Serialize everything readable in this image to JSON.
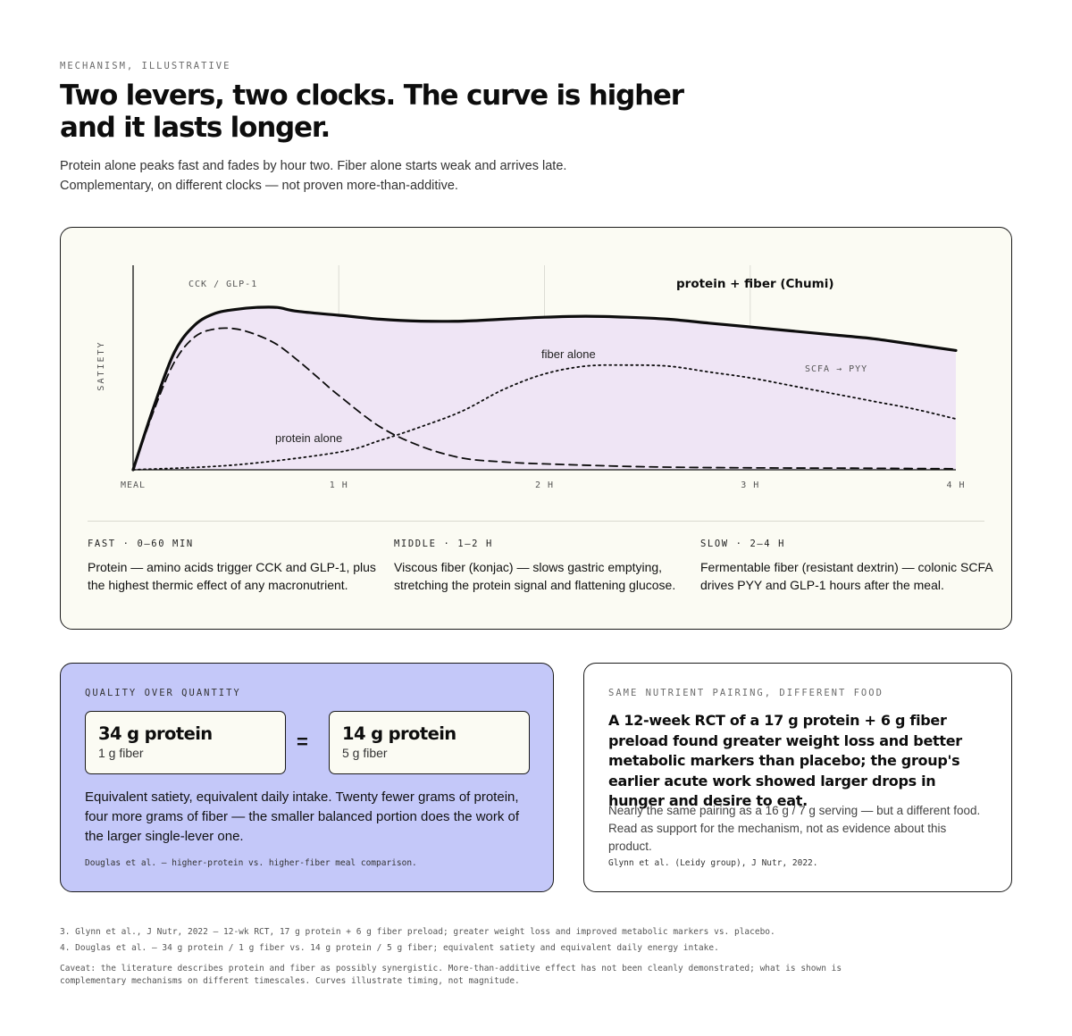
{
  "header": {
    "eyebrow": "MECHANISM, ILLUSTRATIVE",
    "title": "Two levers, two clocks. The curve is higher and it lasts longer.",
    "subtitle_line1": "Protein alone peaks fast and fades by hour two. Fiber alone starts weak and arrives late.",
    "subtitle_line2": "Complementary, on different clocks — not proven more-than-additive."
  },
  "chart_data": {
    "type": "line",
    "ylabel": "SATIETY",
    "xlabel": "",
    "x_ticks": [
      {
        "x": 0,
        "label": "MEAL"
      },
      {
        "x": 1,
        "label": "1 H"
      },
      {
        "x": 2,
        "label": "2 H"
      },
      {
        "x": 3,
        "label": "3 H"
      },
      {
        "x": 4,
        "label": "4 H"
      }
    ],
    "xlim": [
      0,
      4
    ],
    "ylim": [
      0,
      1
    ],
    "grid": "vertical",
    "series": [
      {
        "name": "protein + fiber (Chumi)",
        "style": "solid-thick",
        "filled": true,
        "x": [
          0,
          0.1,
          0.2,
          0.3,
          0.4,
          0.5,
          0.6,
          0.7,
          0.8,
          1.0,
          1.2,
          1.4,
          1.6,
          1.8,
          2.0,
          2.2,
          2.4,
          2.6,
          2.8,
          3.0,
          3.2,
          3.4,
          3.6,
          3.8,
          4.0
        ],
        "y": [
          0,
          0.32,
          0.6,
          0.74,
          0.8,
          0.82,
          0.83,
          0.83,
          0.81,
          0.79,
          0.77,
          0.76,
          0.76,
          0.77,
          0.78,
          0.785,
          0.78,
          0.77,
          0.75,
          0.73,
          0.71,
          0.69,
          0.67,
          0.64,
          0.61
        ]
      },
      {
        "name": "protein alone",
        "style": "dashed",
        "x": [
          0,
          0.1,
          0.2,
          0.3,
          0.4,
          0.5,
          0.6,
          0.7,
          0.8,
          0.9,
          1.0,
          1.2,
          1.4,
          1.6,
          1.8,
          2.0,
          2.5,
          3.0,
          3.5,
          4.0
        ],
        "y": [
          0,
          0.3,
          0.55,
          0.68,
          0.72,
          0.72,
          0.69,
          0.64,
          0.56,
          0.47,
          0.38,
          0.22,
          0.12,
          0.06,
          0.04,
          0.03,
          0.015,
          0.01,
          0.008,
          0.005
        ]
      },
      {
        "name": "fiber alone",
        "style": "dotted",
        "x": [
          0,
          0.5,
          1.0,
          1.2,
          1.4,
          1.6,
          1.8,
          2.0,
          2.2,
          2.4,
          2.6,
          2.8,
          3.0,
          3.2,
          3.4,
          3.6,
          3.8,
          4.0
        ],
        "y": [
          0,
          0.025,
          0.09,
          0.15,
          0.22,
          0.3,
          0.41,
          0.49,
          0.53,
          0.535,
          0.53,
          0.5,
          0.47,
          0.43,
          0.39,
          0.35,
          0.31,
          0.26
        ]
      }
    ],
    "annotations": {
      "cck": "CCK / GLP-1",
      "scfa": "SCFA → PYY"
    }
  },
  "phases": [
    {
      "label": "FAST · 0–60 MIN",
      "text": "Protein — amino acids trigger CCK and GLP-1, plus the highest thermic effect of any macronutrient."
    },
    {
      "label": "MIDDLE · 1–2 H",
      "text": "Viscous fiber (konjac) — slows gastric emptying, stretching the protein signal and flattening glucose."
    },
    {
      "label": "SLOW · 2–4 H",
      "text": "Fermentable fiber (resistant dextrin) — colonic SCFA drives PYY and GLP-1 hours after the meal."
    }
  ],
  "quality": {
    "eyebrow": "QUALITY OVER QUANTITY",
    "left_main": "34 g protein",
    "left_sub": "1 g fiber",
    "equals": "=",
    "right_main": "14 g protein",
    "right_sub": "5 g fiber",
    "body": "Equivalent satiety, equivalent daily intake. Twenty fewer grams of protein, four more grams of fiber — the smaller balanced portion does the work of the larger single-lever one.",
    "cite": "Douglas et al. — higher-protein vs. higher-fiber meal comparison."
  },
  "rct": {
    "eyebrow": "SAME NUTRIENT PAIRING, DIFFERENT FOOD",
    "headline": "A 12-week RCT of a 17 g protein + 6 g fiber preload found greater weight loss and better metabolic markers than placebo; the group's earlier acute work showed larger drops in hunger and desire to eat.",
    "body": "Nearly the same pairing as a 16 g / 7 g serving — but a different food. Read as support for the mechanism, not as evidence about this product.",
    "cite": "Glynn et al. (Leidy group), J Nutr, 2022."
  },
  "footnotes": {
    "fn3": "3. Glynn et al., J Nutr, 2022 — 12-wk RCT, 17 g protein + 6 g fiber preload; greater weight loss and improved metabolic markers vs. placebo.",
    "fn4": "4. Douglas et al. — 34 g protein / 1 g fiber vs. 14 g protein / 5 g fiber; equivalent satiety and equivalent daily energy intake.",
    "caveat": "Caveat: the literature describes protein and fiber as possibly synergistic. More-than-additive effect has not been cleanly demonstrated; what is shown is complementary mechanisms on different timescales. Curves illustrate timing, not magnitude."
  },
  "colors": {
    "fill": "#efe5f5",
    "card_bg": "#fbfbf3",
    "quality_bg": "#c4c8f9",
    "line": "#0d0d0d",
    "grid": "#dcdcd4"
  }
}
